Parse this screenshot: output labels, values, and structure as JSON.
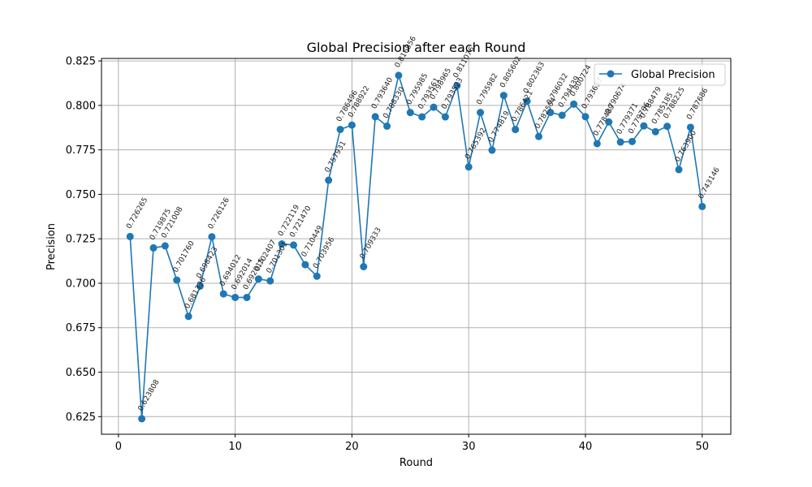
{
  "chart_data": {
    "type": "line",
    "title": "Global Precision after each Round",
    "xlabel": "Round",
    "ylabel": "Precision",
    "xlim": [
      -1.45,
      52.45
    ],
    "ylim": [
      0.6151,
      0.8264
    ],
    "xticks": [
      0,
      10,
      20,
      30,
      40,
      50
    ],
    "yticks": [
      0.625,
      0.65,
      0.675,
      0.7,
      0.725,
      0.75,
      0.775,
      0.8,
      0.825
    ],
    "ytick_labels": [
      "0.625",
      "0.650",
      "0.675",
      "0.700",
      "0.725",
      "0.750",
      "0.775",
      "0.800",
      "0.825"
    ],
    "grid": true,
    "legend_position": "top-right",
    "series": [
      {
        "name": "Global Precision",
        "color": "#1f77b4",
        "marker": "circle",
        "x": [
          1,
          2,
          3,
          4,
          5,
          6,
          7,
          8,
          9,
          10,
          11,
          12,
          13,
          14,
          15,
          16,
          17,
          18,
          19,
          20,
          21,
          22,
          23,
          24,
          25,
          26,
          27,
          28,
          29,
          30,
          31,
          32,
          33,
          34,
          35,
          36,
          37,
          38,
          39,
          40,
          41,
          42,
          43,
          44,
          45,
          46,
          47,
          48,
          49,
          50
        ],
        "values": [
          0.726265,
          0.623808,
          0.719875,
          0.721008,
          0.70176,
          0.681336,
          0.698423,
          0.726126,
          0.694012,
          0.692014,
          0.692015,
          0.702407,
          0.701301,
          0.722119,
          0.72147,
          0.710449,
          0.703956,
          0.757931,
          0.786496,
          0.788922,
          0.709333,
          0.79364,
          0.78833,
          0.816856,
          0.795985,
          0.793561,
          0.798965,
          0.793523,
          0.811076,
          0.765392,
          0.795982,
          0.774819,
          0.805602,
          0.786421,
          0.802363,
          0.782504,
          0.796032,
          0.794439,
          0.800724,
          0.793637,
          0.778489,
          0.790674,
          0.779371,
          0.779706,
          0.788479,
          0.785185,
          0.788225,
          0.7639,
          0.787686,
          0.743146
        ],
        "labels": [
          "0.726265",
          "0.623808",
          "0.719875",
          "0.721008",
          "0.701760",
          "0.681336",
          "0.698423",
          "0.726126",
          "0.694012",
          "0.692014",
          "0.692015",
          "0.702407",
          "0.701301",
          "0.722119",
          "0.721470",
          "0.710449",
          "0.703956",
          "0.757931",
          "0.786496",
          "0.788922",
          "0.709333",
          "0.793640",
          "0.788330",
          "0.816856",
          "0.795985",
          "0.793561",
          "0.798965",
          "0.793523",
          "0.811076",
          "0.765392",
          "0.795982",
          "0.774819",
          "0.805602",
          "0.786421",
          "0.802363",
          "0.782504",
          "0.796032",
          "0.794439",
          "0.800724",
          "0.793637",
          "0.778489",
          "0.790674",
          "0.779371",
          "0.779706",
          "0.788479",
          "0.785185",
          "0.788225",
          "0.763900",
          "0.787686",
          "0.743146"
        ]
      }
    ]
  }
}
